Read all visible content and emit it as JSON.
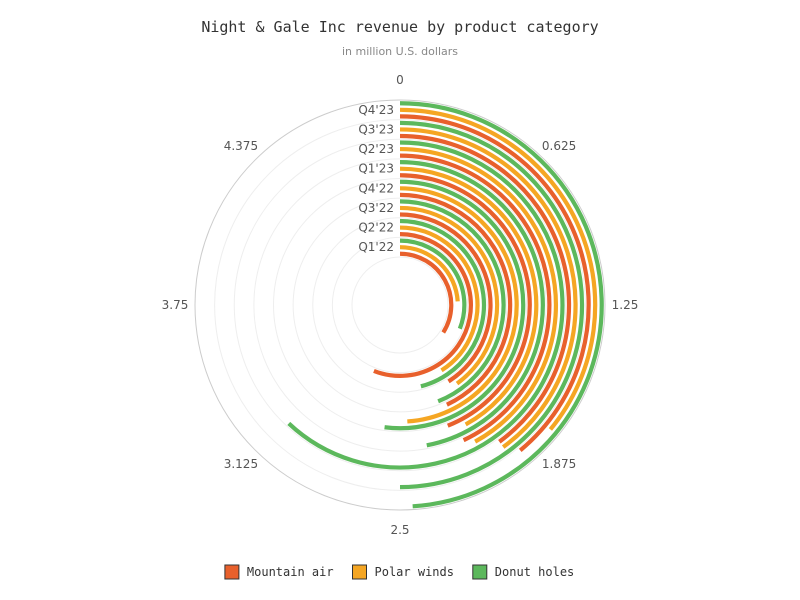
{
  "chart_data": {
    "type": "bar",
    "subtype": "radial-stacked-rings",
    "title": "Night & Gale Inc revenue by product category",
    "subtitle": "in million U.S. dollars",
    "angle_ticks": [
      "0",
      "0.625",
      "1.25",
      "1.875",
      "2.5",
      "3.125",
      "3.75",
      "4.375"
    ],
    "angle_max": 5,
    "categories": [
      "Q1'22",
      "Q2'22",
      "Q3'22",
      "Q4'22",
      "Q1'23",
      "Q2'23",
      "Q3'23",
      "Q4'23"
    ],
    "series": [
      {
        "name": "Mountain air",
        "color": "#e8602c",
        "values": [
          1.7,
          2.8,
          2.05,
          2.15,
          2.2,
          2.15,
          2.0,
          1.95
        ]
      },
      {
        "name": "Polar winds",
        "color": "#f5a623",
        "values": [
          1.2,
          2.05,
          2.0,
          2.45,
          2.1,
          2.1,
          2.0,
          1.8
        ]
      },
      {
        "name": "Donut holes",
        "color": "#5cb85c",
        "values": [
          1.55,
          2.3,
          2.2,
          2.6,
          2.35,
          3.1,
          2.5,
          2.45
        ]
      }
    ],
    "grid": true,
    "legend_position": "bottom"
  }
}
